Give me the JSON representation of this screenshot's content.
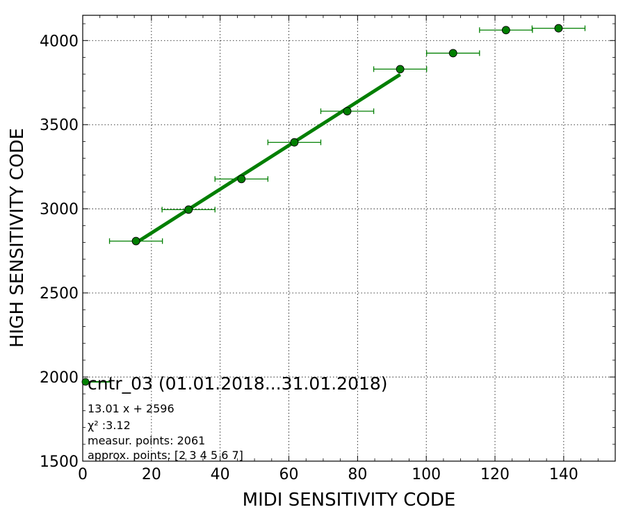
{
  "chart_data": {
    "type": "scatter",
    "xlabel": "MIDI SENSITIVITY CODE",
    "ylabel": "HIGH SENSITIVITY CODE",
    "xlim": [
      0,
      155
    ],
    "ylim": [
      1500,
      4150
    ],
    "x_ticks": [
      0,
      20,
      40,
      60,
      80,
      100,
      120,
      140
    ],
    "y_ticks": [
      1500,
      2000,
      2500,
      3000,
      3500,
      4000
    ],
    "grid": true,
    "legend_placement": "lower-left",
    "series": [
      {
        "name": "cntr_03 (01.01.2018...31.01.2018)",
        "color": "#007f00",
        "marker": "circle",
        "points": [
          {
            "x": 15.5,
            "y": 2808,
            "xerr": 7.7,
            "yerr": 12
          },
          {
            "x": 30.8,
            "y": 2995,
            "xerr": 7.7,
            "yerr": 12
          },
          {
            "x": 46.2,
            "y": 3177,
            "xerr": 7.7,
            "yerr": 14
          },
          {
            "x": 61.6,
            "y": 3395,
            "xerr": 7.7,
            "yerr": 18
          },
          {
            "x": 77.0,
            "y": 3580,
            "xerr": 7.7,
            "yerr": 22
          },
          {
            "x": 92.4,
            "y": 3830,
            "xerr": 7.7,
            "yerr": 20
          },
          {
            "x": 107.8,
            "y": 3925,
            "xerr": 7.7,
            "yerr": 20
          },
          {
            "x": 123.2,
            "y": 4062,
            "xerr": 7.7,
            "yerr": 8
          },
          {
            "x": 138.5,
            "y": 4073,
            "xerr": 7.7,
            "yerr": 8
          }
        ]
      }
    ],
    "fit": {
      "color": "#007f00",
      "slope": 13.01,
      "intercept": 2596,
      "x_range": [
        15.5,
        92.4
      ]
    },
    "annotations": [
      "13.01 x + 2596",
      "χ² :3.12",
      "measur. points: 2061",
      "approx. points: [2 3 4 5 6 7]"
    ]
  }
}
